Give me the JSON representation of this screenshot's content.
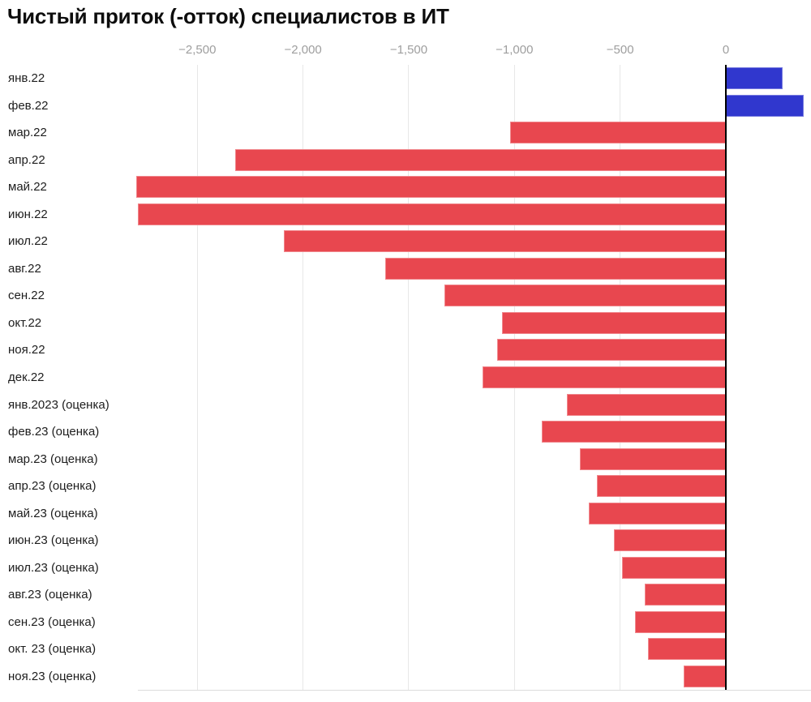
{
  "page": {
    "background": "#ffffff"
  },
  "chart_data": {
    "type": "bar",
    "orientation": "horizontal",
    "title": "Чистый приток (-отток) специалистов в ИТ",
    "categories": [
      "янв.22",
      "фев.22",
      "мар.22",
      "апр.22",
      "май.22",
      "июн.22",
      "июл.22",
      "авг.22",
      "сен.22",
      "окт.22",
      "ноя.22",
      "дек.22",
      "янв.2023 (оценка)",
      "фев.23 (оценка)",
      "мар.23 (оценка)",
      "апр.23 (оценка)",
      "май.23 (оценка)",
      "июн.23 (оценка)",
      "июл.23 (оценка)",
      "авг.23 (оценка)",
      "сен.23 (оценка)",
      "окт. 23 (оценка)",
      "ноя.23 (оценка)"
    ],
    "values": [
      270,
      370,
      -1020,
      -2320,
      -2790,
      -2780,
      -2090,
      -1610,
      -1330,
      -1060,
      -1080,
      -1150,
      -750,
      -870,
      -690,
      -610,
      -650,
      -530,
      -490,
      -385,
      -430,
      -370,
      -200
    ],
    "x_ticks": {
      "values": [
        -2500,
        -2000,
        -1500,
        -1000,
        -500,
        0
      ],
      "labels": [
        "−2,500",
        "−2,000",
        "−1,500",
        "−1,000",
        "−500",
        "0"
      ]
    },
    "xlim": [
      -2790,
      400
    ],
    "grid": "vertical",
    "legend": false,
    "colors": {
      "positive_bar": "#3037ce",
      "negative_bar": "#e8474f",
      "gridline": "#e7e7e7",
      "baseline": "#dcdcdc",
      "zero_line": "#000000",
      "tick_label": "#9e9e9e",
      "category_label": "#1d1d1d"
    }
  }
}
